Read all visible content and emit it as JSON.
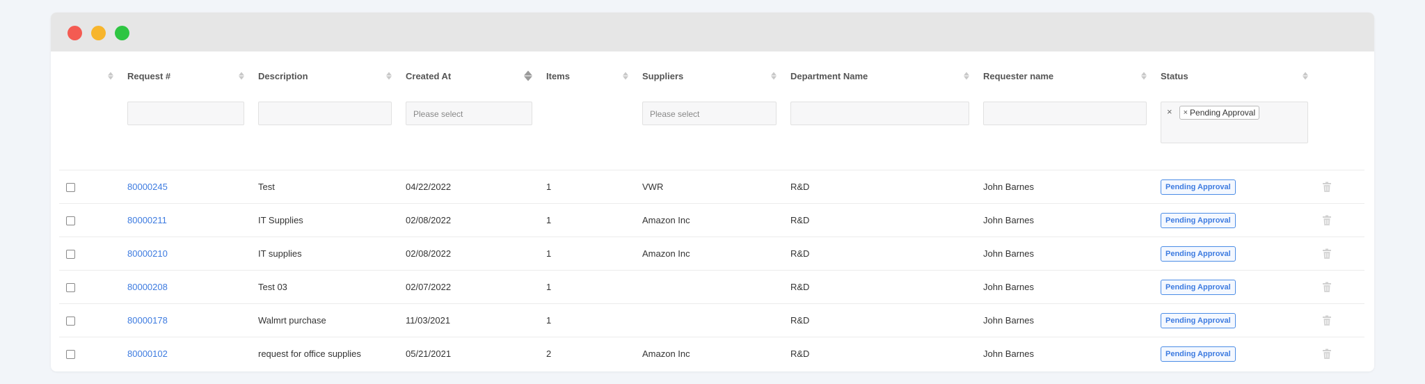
{
  "window": {
    "controls": [
      "close",
      "minimize",
      "maximize"
    ]
  },
  "table": {
    "columns": [
      {
        "label": "",
        "sortable": true
      },
      {
        "label": "Request #",
        "sortable": true
      },
      {
        "label": "Description",
        "sortable": true
      },
      {
        "label": "Created At",
        "sortable": true,
        "active": true
      },
      {
        "label": "Items",
        "sortable": true
      },
      {
        "label": "Suppliers",
        "sortable": true
      },
      {
        "label": "Department Name",
        "sortable": true
      },
      {
        "label": "Requester name",
        "sortable": true
      },
      {
        "label": "Status",
        "sortable": true
      }
    ],
    "filters": {
      "request_value": "",
      "description_value": "",
      "created_at_placeholder": "Please select",
      "suppliers_placeholder": "Please select",
      "department_value": "",
      "requester_value": "",
      "status_clear": "×",
      "status_tag_remove": "×",
      "status_tag": "Pending Approval"
    },
    "rows": [
      {
        "request": "80000245",
        "description": "Test",
        "created_at": "04/22/2022",
        "items": "1",
        "suppliers": "VWR",
        "department": "R&D",
        "requester": "John Barnes",
        "status": "Pending Approval"
      },
      {
        "request": "80000211",
        "description": "IT Supplies",
        "created_at": "02/08/2022",
        "items": "1",
        "suppliers": "Amazon Inc",
        "department": "R&D",
        "requester": "John Barnes",
        "status": "Pending Approval"
      },
      {
        "request": "80000210",
        "description": "IT supplies",
        "created_at": "02/08/2022",
        "items": "1",
        "suppliers": "Amazon Inc",
        "department": "R&D",
        "requester": "John Barnes",
        "status": "Pending Approval"
      },
      {
        "request": "80000208",
        "description": "Test 03",
        "created_at": "02/07/2022",
        "items": "1",
        "suppliers": "",
        "department": "R&D",
        "requester": "John Barnes",
        "status": "Pending Approval"
      },
      {
        "request": "80000178",
        "description": "Walmrt purchase",
        "created_at": "11/03/2021",
        "items": "1",
        "suppliers": "",
        "department": "R&D",
        "requester": "John Barnes",
        "status": "Pending Approval"
      },
      {
        "request": "80000102",
        "description": "request for office supplies",
        "created_at": "05/21/2021",
        "items": "2",
        "suppliers": "Amazon Inc",
        "department": "R&D",
        "requester": "John Barnes",
        "status": "Pending Approval"
      }
    ]
  },
  "colors": {
    "link": "#3d7be0",
    "badge_border": "#4a8ce6",
    "close": "#f45b52",
    "minimize": "#f7b52c",
    "maximize": "#2ec542"
  },
  "icons": {
    "row_delete": "trash-icon",
    "sort": "sort-icon",
    "checkbox": "checkbox"
  }
}
